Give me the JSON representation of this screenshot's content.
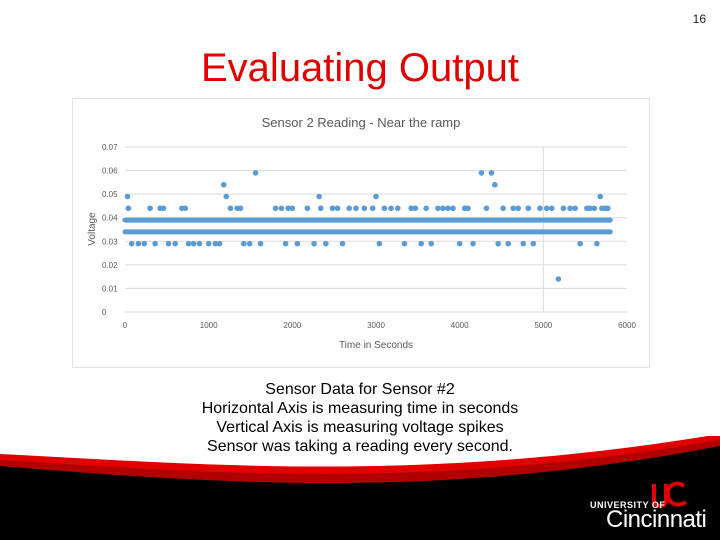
{
  "slide": {
    "page_number": "16",
    "title": "Evaluating Output",
    "caption_lines": [
      "Sensor Data for Sensor #2",
      "Horizontal Axis is measuring time in seconds",
      "Vertical Axis is measuring voltage spikes",
      "Sensor was taking a reading every second."
    ]
  },
  "logo": {
    "university_of": "UNIVERSITY OF",
    "name": "Cincinnati",
    "brand_color": "#e00000"
  },
  "chart_data": {
    "type": "scatter",
    "title": "Sensor 2 Reading - Near the ramp",
    "xlabel": "Time in Seconds",
    "ylabel": "Voltage",
    "xlim": [
      0,
      6000
    ],
    "ylim": [
      0,
      0.07
    ],
    "xticks": [
      "0",
      "1000",
      "2000",
      "3000",
      "4000",
      "5000",
      "6000"
    ],
    "yticks": [
      "0",
      "0.01",
      "0.02",
      "0.03",
      "0.04",
      "0.05",
      "0.06",
      "0.07"
    ],
    "grid": "horizontal",
    "marker_color": "#5b9bd5",
    "series": [
      {
        "baseline_bands": [
          {
            "y": 0.039,
            "x_range": [
              0,
              5800
            ]
          },
          {
            "y": 0.034,
            "x_range": [
              0,
              5800
            ]
          }
        ],
        "points": [
          {
            "x": 30,
            "y": 0.049
          },
          {
            "x": 40,
            "y": 0.044
          },
          {
            "x": 80,
            "y": 0.029
          },
          {
            "x": 160,
            "y": 0.029
          },
          {
            "x": 230,
            "y": 0.029
          },
          {
            "x": 300,
            "y": 0.044
          },
          {
            "x": 360,
            "y": 0.029
          },
          {
            "x": 420,
            "y": 0.044
          },
          {
            "x": 460,
            "y": 0.044
          },
          {
            "x": 520,
            "y": 0.029
          },
          {
            "x": 600,
            "y": 0.029
          },
          {
            "x": 680,
            "y": 0.044
          },
          {
            "x": 720,
            "y": 0.044
          },
          {
            "x": 760,
            "y": 0.029
          },
          {
            "x": 820,
            "y": 0.029
          },
          {
            "x": 890,
            "y": 0.029
          },
          {
            "x": 1000,
            "y": 0.029
          },
          {
            "x": 1080,
            "y": 0.029
          },
          {
            "x": 1130,
            "y": 0.029
          },
          {
            "x": 1180,
            "y": 0.054
          },
          {
            "x": 1210,
            "y": 0.049
          },
          {
            "x": 1260,
            "y": 0.044
          },
          {
            "x": 1340,
            "y": 0.044
          },
          {
            "x": 1380,
            "y": 0.044
          },
          {
            "x": 1420,
            "y": 0.029
          },
          {
            "x": 1490,
            "y": 0.029
          },
          {
            "x": 1560,
            "y": 0.059
          },
          {
            "x": 1620,
            "y": 0.029
          },
          {
            "x": 1800,
            "y": 0.044
          },
          {
            "x": 1870,
            "y": 0.044
          },
          {
            "x": 1920,
            "y": 0.029
          },
          {
            "x": 1950,
            "y": 0.044
          },
          {
            "x": 2000,
            "y": 0.044
          },
          {
            "x": 2060,
            "y": 0.029
          },
          {
            "x": 2180,
            "y": 0.044
          },
          {
            "x": 2260,
            "y": 0.029
          },
          {
            "x": 2320,
            "y": 0.049
          },
          {
            "x": 2340,
            "y": 0.044
          },
          {
            "x": 2400,
            "y": 0.029
          },
          {
            "x": 2480,
            "y": 0.044
          },
          {
            "x": 2540,
            "y": 0.044
          },
          {
            "x": 2600,
            "y": 0.029
          },
          {
            "x": 2680,
            "y": 0.044
          },
          {
            "x": 2760,
            "y": 0.044
          },
          {
            "x": 2860,
            "y": 0.044
          },
          {
            "x": 2960,
            "y": 0.044
          },
          {
            "x": 3000,
            "y": 0.049
          },
          {
            "x": 3040,
            "y": 0.029
          },
          {
            "x": 3100,
            "y": 0.044
          },
          {
            "x": 3180,
            "y": 0.044
          },
          {
            "x": 3260,
            "y": 0.044
          },
          {
            "x": 3340,
            "y": 0.029
          },
          {
            "x": 3420,
            "y": 0.044
          },
          {
            "x": 3470,
            "y": 0.044
          },
          {
            "x": 3540,
            "y": 0.029
          },
          {
            "x": 3600,
            "y": 0.044
          },
          {
            "x": 3660,
            "y": 0.029
          },
          {
            "x": 3740,
            "y": 0.044
          },
          {
            "x": 3800,
            "y": 0.044
          },
          {
            "x": 3860,
            "y": 0.044
          },
          {
            "x": 3920,
            "y": 0.044
          },
          {
            "x": 4000,
            "y": 0.029
          },
          {
            "x": 4060,
            "y": 0.044
          },
          {
            "x": 4100,
            "y": 0.044
          },
          {
            "x": 4160,
            "y": 0.029
          },
          {
            "x": 4260,
            "y": 0.059
          },
          {
            "x": 4320,
            "y": 0.044
          },
          {
            "x": 4380,
            "y": 0.059
          },
          {
            "x": 4420,
            "y": 0.054
          },
          {
            "x": 4460,
            "y": 0.029
          },
          {
            "x": 4520,
            "y": 0.044
          },
          {
            "x": 4580,
            "y": 0.029
          },
          {
            "x": 4640,
            "y": 0.044
          },
          {
            "x": 4700,
            "y": 0.044
          },
          {
            "x": 4760,
            "y": 0.029
          },
          {
            "x": 4820,
            "y": 0.044
          },
          {
            "x": 4880,
            "y": 0.029
          },
          {
            "x": 4960,
            "y": 0.044
          },
          {
            "x": 5040,
            "y": 0.044
          },
          {
            "x": 5100,
            "y": 0.044
          },
          {
            "x": 5180,
            "y": 0.014
          },
          {
            "x": 5240,
            "y": 0.044
          },
          {
            "x": 5320,
            "y": 0.044
          },
          {
            "x": 5380,
            "y": 0.044
          },
          {
            "x": 5440,
            "y": 0.029
          },
          {
            "x": 5520,
            "y": 0.044
          },
          {
            "x": 5560,
            "y": 0.044
          },
          {
            "x": 5610,
            "y": 0.044
          },
          {
            "x": 5640,
            "y": 0.029
          },
          {
            "x": 5680,
            "y": 0.049
          },
          {
            "x": 5700,
            "y": 0.044
          },
          {
            "x": 5740,
            "y": 0.044
          },
          {
            "x": 5770,
            "y": 0.044
          },
          {
            "x": 5790,
            "y": 0.039
          }
        ]
      }
    ]
  }
}
